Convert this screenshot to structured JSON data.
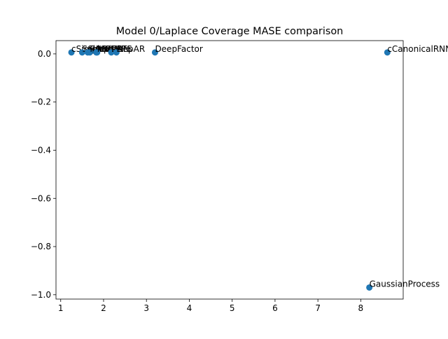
{
  "chart_data": {
    "type": "scatter",
    "title": "Model 0/Laplace Coverage MASE comparison",
    "xlabel": "",
    "ylabel": "",
    "xlim": [
      0.89,
      8.99
    ],
    "ylim": [
      -1.018,
      0.055
    ],
    "xticks": [
      1,
      2,
      3,
      4,
      5,
      6,
      7,
      8
    ],
    "yticks": [
      0.0,
      -0.2,
      -0.4,
      -0.6,
      -0.8,
      -1.0
    ],
    "ytick_labels": [
      "0.0",
      "−0.2",
      "−0.4",
      "−0.6",
      "−0.8",
      "−1.0"
    ],
    "grid": false,
    "marker_color": "#1f77b4",
    "points": [
      {
        "label": "cSimple",
        "x": 1.25,
        "y": 0.006
      },
      {
        "label": "Seasonal",
        "x": 1.5,
        "y": 0.006
      },
      {
        "label": "SimpleFF",
        "x": 1.63,
        "y": 0.006
      },
      {
        "label": "RNN",
        "x": 1.68,
        "y": 0.006
      },
      {
        "label": "ARIMA",
        "x": 1.83,
        "y": 0.006
      },
      {
        "label": "MQCNN",
        "x": 1.85,
        "y": 0.006
      },
      {
        "label": "DeepAR",
        "x": 2.18,
        "y": 0.006
      },
      {
        "label": "ETS",
        "x": 2.3,
        "y": 0.006
      },
      {
        "label": "DeepFactor",
        "x": 3.2,
        "y": 0.006
      },
      {
        "label": "cCanonicalRNN",
        "x": 8.62,
        "y": 0.006
      },
      {
        "label": "GaussianProcess",
        "x": 8.2,
        "y": -0.97
      }
    ]
  }
}
